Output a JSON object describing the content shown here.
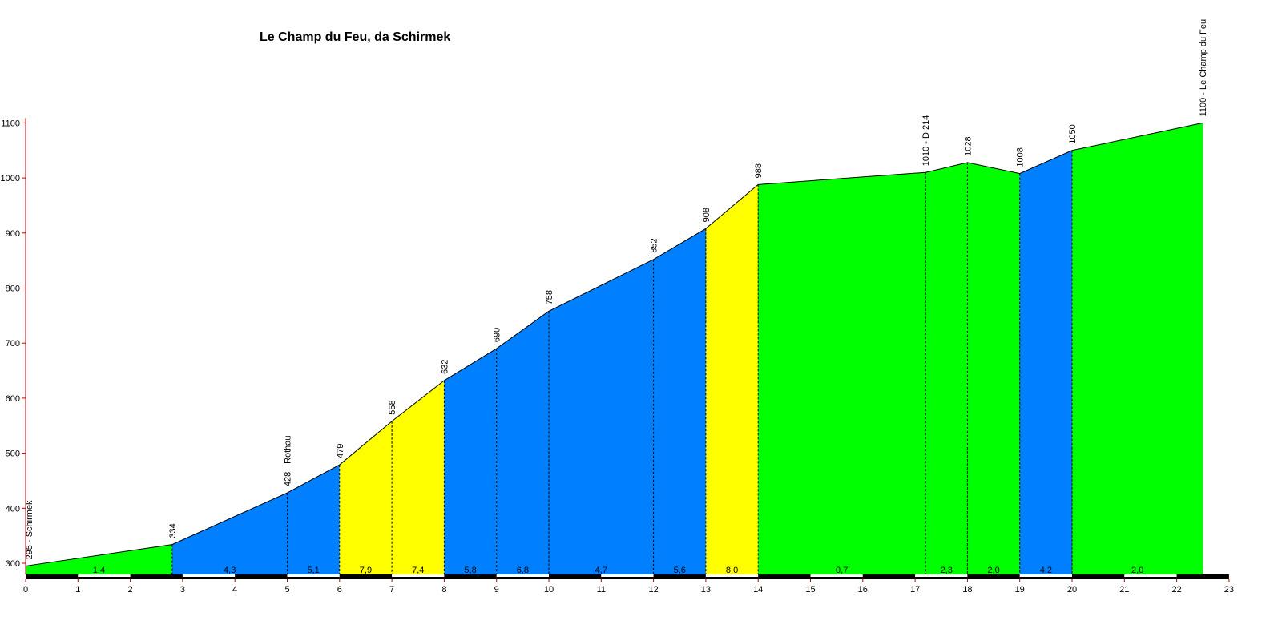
{
  "chart_data": {
    "type": "area",
    "title": "Le Champ du Feu, da Schirmek",
    "xlabel": "",
    "ylabel": "",
    "xlim": [
      0,
      23
    ],
    "ylim": [
      280,
      1100
    ],
    "x_ticks": [
      0,
      1,
      2,
      3,
      4,
      5,
      6,
      7,
      8,
      9,
      10,
      11,
      12,
      13,
      14,
      15,
      16,
      17,
      18,
      19,
      20,
      21,
      22,
      23
    ],
    "y_ticks": [
      300,
      400,
      500,
      600,
      700,
      800,
      900,
      1000,
      1100
    ],
    "profile": [
      {
        "km": 0,
        "alt": 295,
        "label": "295 - Schirmek"
      },
      {
        "km": 2.8,
        "alt": 334,
        "label": "334"
      },
      {
        "km": 5,
        "alt": 428,
        "label": "428 - Rothau"
      },
      {
        "km": 6,
        "alt": 479,
        "label": "479"
      },
      {
        "km": 7,
        "alt": 558,
        "label": "558"
      },
      {
        "km": 8,
        "alt": 632,
        "label": "632"
      },
      {
        "km": 9,
        "alt": 690,
        "label": "690"
      },
      {
        "km": 10,
        "alt": 758,
        "label": "758"
      },
      {
        "km": 12,
        "alt": 852,
        "label": "852"
      },
      {
        "km": 13,
        "alt": 908,
        "label": "908"
      },
      {
        "km": 14,
        "alt": 988,
        "label": "988"
      },
      {
        "km": 17.2,
        "alt": 1010,
        "label": "1010 - D 214"
      },
      {
        "km": 18,
        "alt": 1028,
        "label": "1028"
      },
      {
        "km": 19,
        "alt": 1008,
        "label": "1008"
      },
      {
        "km": 20,
        "alt": 1050,
        "label": "1050"
      },
      {
        "km": 22.5,
        "alt": 1100,
        "label": "1100 - Le Champ du Feu"
      }
    ],
    "segments": [
      {
        "gradient": "1,4",
        "color": "#00ff00"
      },
      {
        "gradient": "4,3",
        "color": "#0080ff"
      },
      {
        "gradient": "5,1",
        "color": "#0080ff"
      },
      {
        "gradient": "7,9",
        "color": "#ffff00"
      },
      {
        "gradient": "7,4",
        "color": "#ffff00"
      },
      {
        "gradient": "5,8",
        "color": "#0080ff"
      },
      {
        "gradient": "6,8",
        "color": "#0080ff"
      },
      {
        "gradient": "4,7",
        "color": "#0080ff"
      },
      {
        "gradient": "5,6",
        "color": "#0080ff"
      },
      {
        "gradient": "8,0",
        "color": "#ffff00"
      },
      {
        "gradient": "0,7",
        "color": "#00ff00"
      },
      {
        "gradient": "2,3",
        "color": "#00ff00"
      },
      {
        "gradient": "2,0",
        "color": "#00ff00"
      },
      {
        "gradient": "4,2",
        "color": "#0080ff"
      },
      {
        "gradient": "2,0",
        "color": "#00ff00"
      }
    ],
    "grid": false,
    "axis_color": "#c00000"
  }
}
